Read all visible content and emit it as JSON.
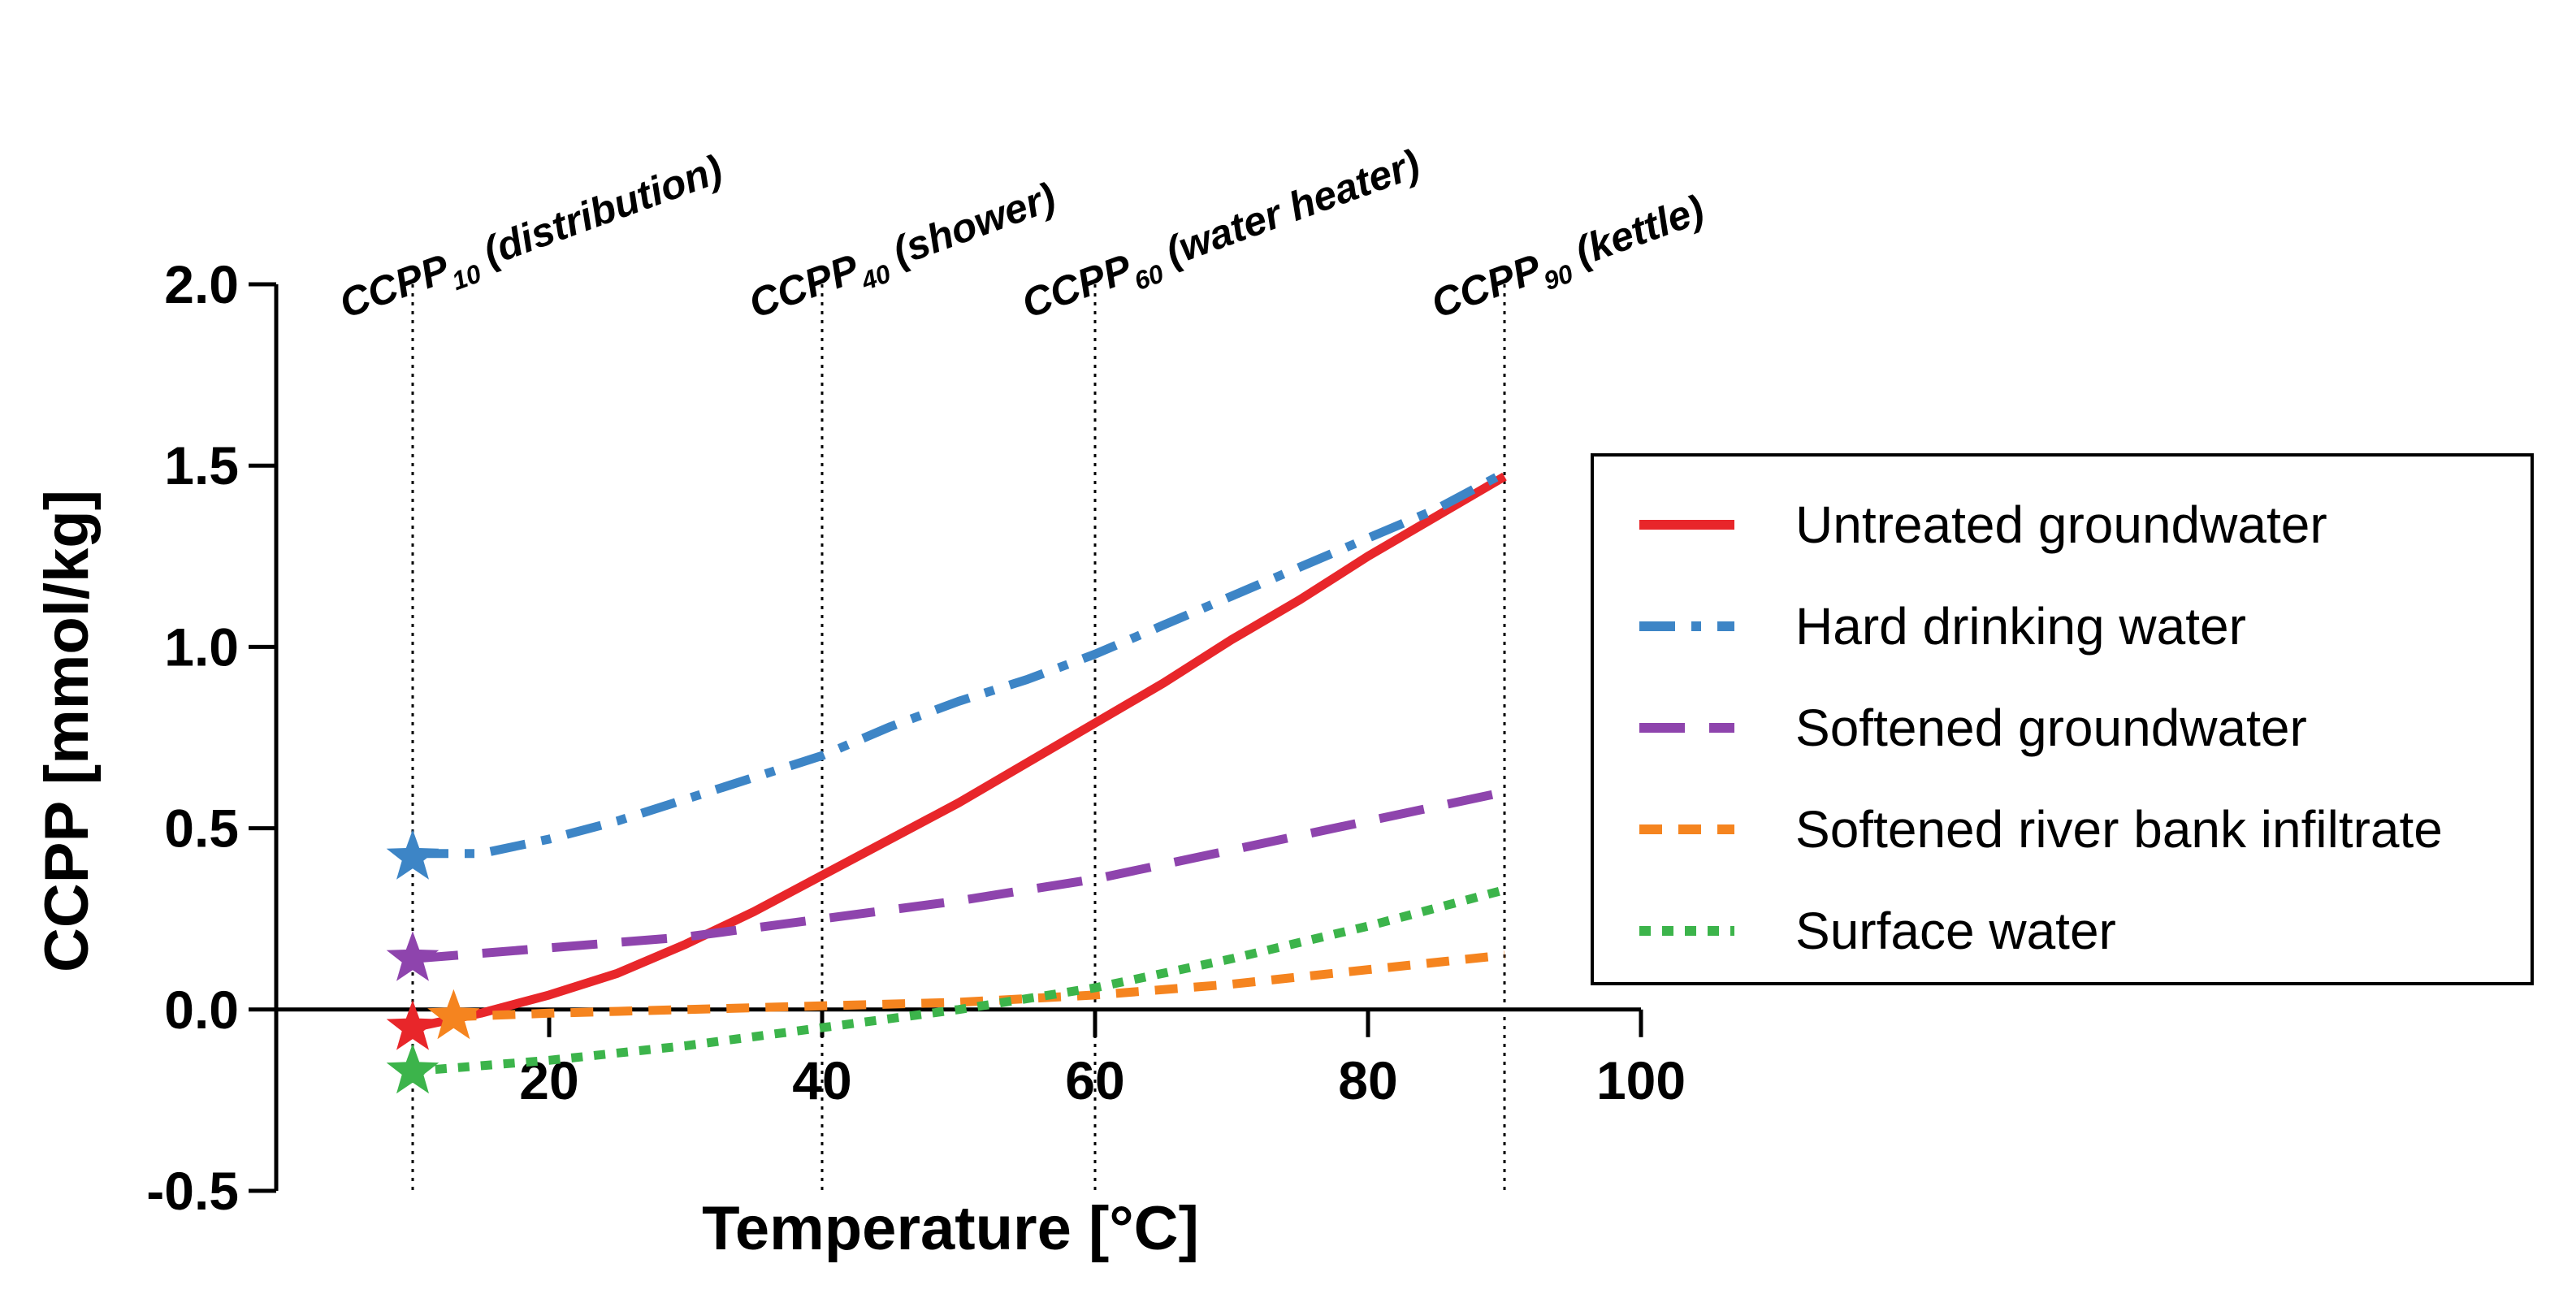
{
  "chart_data": {
    "type": "line",
    "xlabel": "Temperature [°C]",
    "ylabel": "CCPP [mmol/kg]",
    "xlim": [
      0,
      100
    ],
    "ylim": [
      -0.5,
      2.0
    ],
    "x_ticks": [
      20,
      40,
      60,
      80,
      100
    ],
    "x_tick_labels": [
      "20",
      "40",
      "60",
      "80",
      "100"
    ],
    "y_ticks": [
      -0.5,
      0.0,
      0.5,
      1.0,
      1.5,
      2.0
    ],
    "y_tick_labels": [
      "-0.5",
      "0.0",
      "0.5",
      "1.0",
      "1.5",
      "2.0"
    ],
    "x_axis_at_y": 0.0,
    "reference_lines": [
      {
        "x": 10,
        "label_main": "CCPP",
        "label_sub": "10",
        "label_suffix": " (distribution)"
      },
      {
        "x": 40,
        "label_main": "CCPP",
        "label_sub": "40",
        "label_suffix": " (shower)"
      },
      {
        "x": 60,
        "label_main": "CCPP",
        "label_sub": "60",
        "label_suffix": " (water heater)"
      },
      {
        "x": 90,
        "label_main": "CCPP",
        "label_sub": "90",
        "label_suffix": " (kettle)"
      }
    ],
    "series": [
      {
        "name": "Untreated groundwater",
        "color": "#e8262a",
        "style": "solid",
        "x": [
          10,
          15,
          20,
          25,
          30,
          35,
          40,
          45,
          50,
          55,
          60,
          65,
          70,
          75,
          80,
          85,
          90
        ],
        "values": [
          -0.05,
          -0.01,
          0.04,
          0.1,
          0.18,
          0.27,
          0.37,
          0.47,
          0.57,
          0.68,
          0.79,
          0.9,
          1.02,
          1.13,
          1.25,
          1.36,
          1.47
        ],
        "marker": {
          "x": 10,
          "y": -0.05
        }
      },
      {
        "name": "Hard drinking water",
        "color": "#3d85c6",
        "style": "dashdot",
        "x": [
          10,
          15,
          20,
          25,
          30,
          35,
          40,
          45,
          50,
          55,
          60,
          65,
          70,
          75,
          80,
          85,
          90
        ],
        "values": [
          0.43,
          0.43,
          0.47,
          0.52,
          0.58,
          0.64,
          0.7,
          0.78,
          0.85,
          0.91,
          0.98,
          1.06,
          1.14,
          1.22,
          1.3,
          1.38,
          1.48
        ],
        "marker": {
          "x": 10,
          "y": 0.42
        }
      },
      {
        "name": "Softened groundwater",
        "color": "#8e44ad",
        "style": "longdash",
        "x": [
          10,
          20,
          30,
          40,
          50,
          60,
          70,
          80,
          90
        ],
        "values": [
          0.14,
          0.17,
          0.2,
          0.25,
          0.3,
          0.36,
          0.44,
          0.52,
          0.6
        ],
        "marker": {
          "x": 10,
          "y": 0.14
        }
      },
      {
        "name": "Softened river bank infiltrate",
        "color": "#f5841f",
        "style": "shortdash",
        "x": [
          13,
          20,
          30,
          40,
          50,
          60,
          70,
          80,
          90
        ],
        "values": [
          -0.02,
          -0.01,
          0.0,
          0.01,
          0.02,
          0.04,
          0.07,
          0.11,
          0.15
        ],
        "marker": {
          "x": 13,
          "y": -0.02
        }
      },
      {
        "name": "Surface water",
        "color": "#3cb44b",
        "style": "dotted",
        "x": [
          10,
          20,
          30,
          40,
          50,
          60,
          70,
          80,
          90
        ],
        "values": [
          -0.17,
          -0.14,
          -0.1,
          -0.05,
          0.0,
          0.06,
          0.14,
          0.23,
          0.33
        ],
        "marker": {
          "x": 10,
          "y": -0.17
        }
      }
    ],
    "legend": {
      "position": "right",
      "entries": [
        "Untreated groundwater",
        "Hard drinking water",
        "Softened groundwater",
        "Softened river bank infiltrate",
        "Surface water"
      ]
    }
  }
}
